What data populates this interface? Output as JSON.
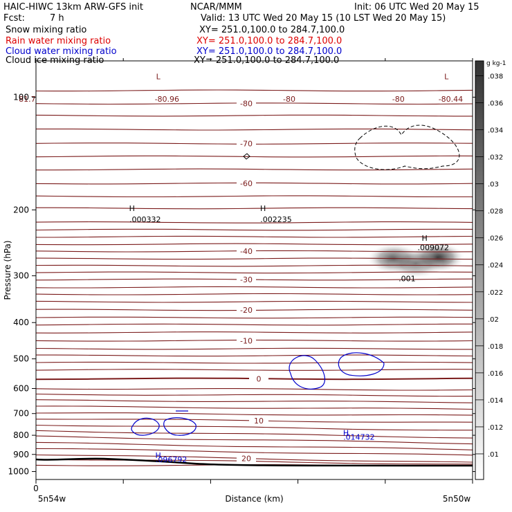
{
  "header": {
    "title": "HAIC-HIWC 13km ARW-GFS init",
    "org": "NCAR/MMM",
    "init": "Init: 06 UTC Wed 20 May 15",
    "fcst_label": "Fcst:",
    "fcst_value": "7 h",
    "valid": "Valid: 13 UTC Wed 20 May 15 (10 LST Wed 20 May 15)"
  },
  "legend": [
    {
      "label": "Snow mixing ratio",
      "xy": "XY= 251.0,100.0 to 284.7,100.0",
      "color": "#000000"
    },
    {
      "label": "Rain water mixing ratio",
      "xy": "XY= 251.0,100.0 to 284.7,100.0",
      "color": "#dd0000"
    },
    {
      "label": "Cloud water mixing ratio",
      "xy": "XY= 251.0,100.0 to 284.7,100.0",
      "color": "#0000cc"
    },
    {
      "label": "Cloud ice mixing ratio",
      "xy": "XY= 251.0,100.0 to 284.7,100.0",
      "color": "#000000"
    }
  ],
  "colors": {
    "temperature_contour": "#7a1a1a",
    "cloud_water": "#0000cc",
    "terrain": "#000000"
  },
  "chart_data": {
    "type": "cross-section",
    "xlabel": "Distance (km)",
    "ylabel": "Pressure (hPa)",
    "x_start_label": "5n54w",
    "x_end_label": "5n50w",
    "x_zero_label": "0",
    "y_scale": "log",
    "ylim": [
      1050,
      80
    ],
    "y_ticks": [
      100,
      200,
      300,
      400,
      500,
      600,
      700,
      800,
      900,
      1000
    ],
    "x_tick_fractions": [
      0,
      0.2,
      0.4,
      0.6,
      0.8,
      1
    ],
    "temperature_contours": [
      {
        "pressure": 962,
        "tilt": 0,
        "label": ""
      },
      {
        "pressure": 925,
        "tilt": 8,
        "label": ""
      },
      {
        "pressure": 900,
        "tilt": 12,
        "label": "20"
      },
      {
        "pressure": 868,
        "tilt": 10,
        "label": ""
      },
      {
        "pressure": 838,
        "tilt": 10,
        "label": ""
      },
      {
        "pressure": 806,
        "tilt": 10,
        "label": ""
      },
      {
        "pressure": 778,
        "tilt": 10,
        "label": ""
      },
      {
        "pressure": 750,
        "tilt": 8,
        "label": ""
      },
      {
        "pressure": 722,
        "tilt": 6,
        "label": "10"
      },
      {
        "pressure": 697,
        "tilt": 4,
        "label": ""
      },
      {
        "pressure": 670,
        "tilt": 4,
        "label": ""
      },
      {
        "pressure": 645,
        "tilt": 3,
        "label": ""
      },
      {
        "pressure": 622,
        "tilt": 2,
        "label": ""
      },
      {
        "pressure": 600,
        "tilt": 2,
        "label": ""
      },
      {
        "pressure": 565,
        "tilt": 0,
        "label": "0"
      },
      {
        "pressure": 535,
        "tilt": 0,
        "label": ""
      },
      {
        "pressure": 512,
        "tilt": 0,
        "label": ""
      },
      {
        "pressure": 490,
        "tilt": 0,
        "label": ""
      },
      {
        "pressure": 470,
        "tilt": 0,
        "label": ""
      },
      {
        "pressure": 447,
        "tilt": 0,
        "label": "-10"
      },
      {
        "pressure": 425,
        "tilt": 0,
        "label": ""
      },
      {
        "pressure": 405,
        "tilt": 0,
        "label": ""
      },
      {
        "pressure": 388,
        "tilt": 0,
        "label": ""
      },
      {
        "pressure": 370,
        "tilt": 0,
        "label": "-20"
      },
      {
        "pressure": 352,
        "tilt": 0,
        "label": ""
      },
      {
        "pressure": 336,
        "tilt": 0,
        "label": ""
      },
      {
        "pressure": 322,
        "tilt": 0,
        "label": ""
      },
      {
        "pressure": 307,
        "tilt": 0,
        "label": "-30"
      },
      {
        "pressure": 294,
        "tilt": 0,
        "label": ""
      },
      {
        "pressure": 282,
        "tilt": 0,
        "label": ""
      },
      {
        "pressure": 270,
        "tilt": 0,
        "label": ""
      },
      {
        "pressure": 258,
        "tilt": 0,
        "label": "-40"
      },
      {
        "pressure": 247,
        "tilt": 0,
        "label": ""
      },
      {
        "pressure": 236,
        "tilt": 0,
        "label": ""
      },
      {
        "pressure": 226,
        "tilt": 0,
        "label": ""
      },
      {
        "pressure": 216,
        "tilt": 0,
        "label": ""
      },
      {
        "pressure": 198,
        "tilt": 0,
        "label": ""
      },
      {
        "pressure": 184,
        "tilt": 0,
        "label": ""
      },
      {
        "pressure": 170,
        "tilt": 0,
        "label": "-60"
      },
      {
        "pressure": 156,
        "tilt": 0,
        "label": ""
      },
      {
        "pressure": 144,
        "tilt": 0,
        "label": ""
      },
      {
        "pressure": 133,
        "tilt": 0,
        "label": "-70"
      },
      {
        "pressure": 122,
        "tilt": 0,
        "label": ""
      },
      {
        "pressure": 112,
        "tilt": 0,
        "label": ""
      },
      {
        "pressure": 104,
        "tilt": 0,
        "label": "-80"
      },
      {
        "pressure": 96,
        "tilt": 0,
        "label": ""
      }
    ],
    "extrema_labels": [
      {
        "text": "L",
        "pressure": 88,
        "x_frac": 0.28,
        "color": "#7a1a1a"
      },
      {
        "text": "-80.96",
        "pressure": 101,
        "x_frac": 0.3,
        "color": "#7a1a1a"
      },
      {
        "text": "L",
        "pressure": 88,
        "x_frac": 0.94,
        "color": "#7a1a1a"
      },
      {
        "text": "-80.44",
        "pressure": 101,
        "x_frac": 0.95,
        "color": "#7a1a1a"
      },
      {
        "text": "-80",
        "pressure": 101,
        "x_frac": 0.58,
        "color": "#7a1a1a"
      },
      {
        "text": "-80",
        "pressure": 101,
        "x_frac": 0.83,
        "color": "#7a1a1a"
      },
      {
        "text": "81.7",
        "pressure": 101,
        "x_frac": -0.02,
        "color": "#7a1a1a"
      },
      {
        "text": "H",
        "pressure": 198,
        "x_frac": 0.22,
        "color": "#000000"
      },
      {
        "text": ".000332",
        "pressure": 212,
        "x_frac": 0.25,
        "color": "#000000"
      },
      {
        "text": "H",
        "pressure": 198,
        "x_frac": 0.52,
        "color": "#000000"
      },
      {
        "text": ".002235",
        "pressure": 212,
        "x_frac": 0.55,
        "color": "#000000"
      },
      {
        "text": "H",
        "pressure": 238,
        "x_frac": 0.89,
        "color": "#000000"
      },
      {
        "text": ".009072",
        "pressure": 252,
        "x_frac": 0.91,
        "color": "#000000"
      },
      {
        "text": ".001",
        "pressure": 305,
        "x_frac": 0.85,
        "color": "#000000"
      },
      {
        "text": "H",
        "pressure": 788,
        "x_frac": 0.71,
        "color": "#0000cc"
      },
      {
        "text": ".014732",
        "pressure": 808,
        "x_frac": 0.74,
        "color": "#0000cc"
      },
      {
        "text": "H",
        "pressure": 905,
        "x_frac": 0.28,
        "color": "#0000cc"
      },
      {
        "text": ".096792",
        "pressure": 928,
        "x_frac": 0.31,
        "color": "#0000cc"
      }
    ],
    "snow_field": [
      {
        "x_frac": 0.82,
        "pressure": 270,
        "value": 0.03
      },
      {
        "x_frac": 0.92,
        "pressure": 268,
        "value": 0.036
      },
      {
        "x_frac": 0.87,
        "pressure": 278,
        "value": 0.022
      }
    ],
    "colorbar": {
      "unit": "g kg-1",
      "ticks": [
        ".01",
        ".012",
        ".014",
        ".016",
        ".018",
        ".02",
        ".022",
        ".024",
        ".026",
        ".028",
        ".03",
        ".032",
        ".034",
        ".036",
        ".038"
      ]
    }
  }
}
